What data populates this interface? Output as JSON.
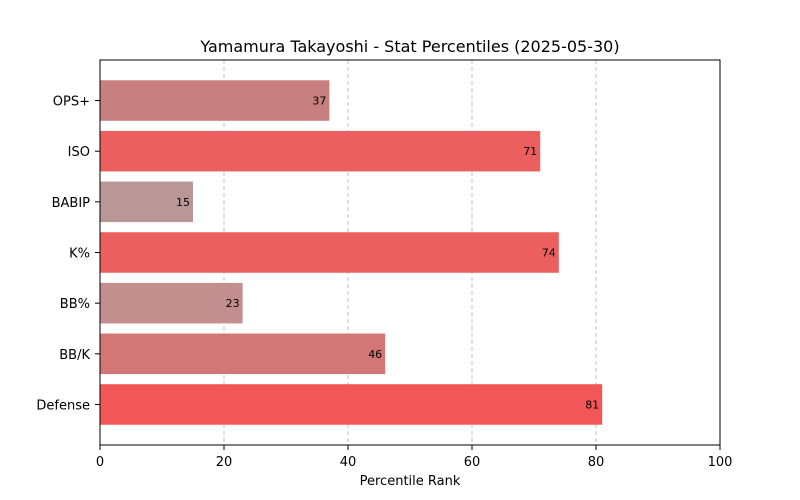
{
  "chart_data": {
    "type": "bar",
    "orientation": "horizontal",
    "title": "Yamamura Takayoshi - Stat Percentiles (2025-05-30)",
    "xlabel": "Percentile Rank",
    "ylabel": "",
    "xlim": [
      0,
      100
    ],
    "xticks": [
      0,
      20,
      40,
      60,
      80,
      100
    ],
    "grid": "vertical-dashed",
    "categories": [
      "OPS+",
      "ISO",
      "BABIP",
      "K%",
      "BB%",
      "BB/K",
      "Defense"
    ],
    "values": [
      37,
      71,
      15,
      74,
      23,
      46,
      81
    ],
    "colors": [
      "#c77f7f",
      "#ec5f5f",
      "#ba9797",
      "#ec5f5f",
      "#c38e8e",
      "#d27676",
      "#f35656"
    ]
  }
}
